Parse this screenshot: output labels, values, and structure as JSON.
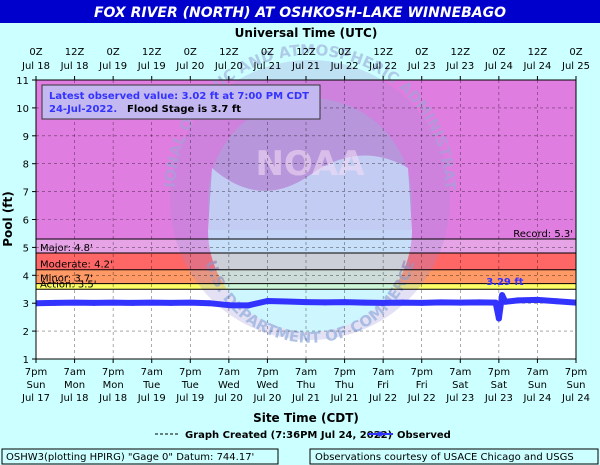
{
  "colors": {
    "title_bg": "#0000cc",
    "title_fg": "#ffffff",
    "page_bg": "#ccffff",
    "plot_bg": "#ffffff",
    "zone_record": "#e07de0",
    "zone_major": "#e6a3e6",
    "zone_moderate": "#ff6666",
    "zone_minor": "#ff9966",
    "zone_action": "#ffff66",
    "series": "#3333ff",
    "info_text": "#3333ff",
    "grid": "#000000",
    "watermark_blue": "#8fb6d8",
    "watermark_cyan": "#bdf3ff"
  },
  "icons": {
    "logo": "noaa-watermark-logo"
  },
  "header": {
    "title": "FOX RIVER (NORTH) AT OSHKOSH-LAKE WINNEBAGO"
  },
  "info_box": {
    "line1": "Latest observed value: 3.02 ft at 7:00 PM CDT",
    "line2a": "24-Jul-2022.",
    "line2b": "Flood Stage is 3.7 ft"
  },
  "watermark": {
    "word": "NOAA",
    "ring_top": "NATIONAL OCEANIC AND ATMOSPHERIC ADMINISTRATION",
    "ring_bottom": "U.S. DEPARTMENT OF COMMERCE"
  },
  "footer": {
    "legend_created": "Graph Created (7:36PM Jul 24, 2022)",
    "legend_observed": "Observed",
    "left_box": "OSHW3(plotting HPIRG) \"Gage 0\" Datum: 744.17'",
    "right_box": "Observations courtesy of USACE Chicago and USGS"
  },
  "chart_data": {
    "type": "line",
    "title": "FOX RIVER (NORTH) AT OSHKOSH-LAKE WINNEBAGO",
    "xlabel": "Site Time (CDT)",
    "ylabel": "Pool (ft)",
    "top_axis_label": "Universal Time (UTC)",
    "ylim": [
      1,
      11
    ],
    "y_ticks": [
      1,
      2,
      3,
      4,
      5,
      6,
      7,
      8,
      9,
      10,
      11
    ],
    "x_range": [
      "2022-07-17T19:00",
      "2022-07-24T19:00"
    ],
    "top_ticks": [
      {
        "l1": "0Z",
        "l2": "Jul 18"
      },
      {
        "l1": "12Z",
        "l2": "Jul 18"
      },
      {
        "l1": "0Z",
        "l2": "Jul 19"
      },
      {
        "l1": "12Z",
        "l2": "Jul 19"
      },
      {
        "l1": "0Z",
        "l2": "Jul 20"
      },
      {
        "l1": "12Z",
        "l2": "Jul 20"
      },
      {
        "l1": "0Z",
        "l2": "Jul 21"
      },
      {
        "l1": "12Z",
        "l2": "Jul 21"
      },
      {
        "l1": "0Z",
        "l2": "Jul 22"
      },
      {
        "l1": "12Z",
        "l2": "Jul 22"
      },
      {
        "l1": "0Z",
        "l2": "Jul 23"
      },
      {
        "l1": "12Z",
        "l2": "Jul 23"
      },
      {
        "l1": "0Z",
        "l2": "Jul 24"
      },
      {
        "l1": "12Z",
        "l2": "Jul 24"
      },
      {
        "l1": "0Z",
        "l2": "Jul 25"
      }
    ],
    "bottom_ticks": [
      {
        "t": "7pm",
        "d": "Sun",
        "date": "Jul 17"
      },
      {
        "t": "7am",
        "d": "Mon",
        "date": "Jul 18"
      },
      {
        "t": "7pm",
        "d": "Mon",
        "date": "Jul 18"
      },
      {
        "t": "7am",
        "d": "Tue",
        "date": "Jul 19"
      },
      {
        "t": "7pm",
        "d": "Tue",
        "date": "Jul 19"
      },
      {
        "t": "7am",
        "d": "Wed",
        "date": "Jul 20"
      },
      {
        "t": "7pm",
        "d": "Wed",
        "date": "Jul 20"
      },
      {
        "t": "7am",
        "d": "Thu",
        "date": "Jul 21"
      },
      {
        "t": "7pm",
        "d": "Thu",
        "date": "Jul 21"
      },
      {
        "t": "7am",
        "d": "Fri",
        "date": "Jul 22"
      },
      {
        "t": "7pm",
        "d": "Fri",
        "date": "Jul 22"
      },
      {
        "t": "7am",
        "d": "Sat",
        "date": "Jul 23"
      },
      {
        "t": "7pm",
        "d": "Sat",
        "date": "Jul 23"
      },
      {
        "t": "7am",
        "d": "Sun",
        "date": "Jul 24"
      },
      {
        "t": "7pm",
        "d": "Sun",
        "date": "Jul 24"
      }
    ],
    "flood_categories": [
      {
        "name": "Record",
        "label": "Record: 5.3'",
        "value": 5.3
      },
      {
        "name": "Major",
        "label": "Major: 4.8'",
        "value": 4.8
      },
      {
        "name": "Moderate",
        "label": "Moderate: 4.2'",
        "value": 4.2
      },
      {
        "name": "Minor",
        "label": "Minor: 3.7'",
        "value": 3.7
      },
      {
        "name": "Action",
        "label": "Action: 3.5'",
        "value": 3.5
      }
    ],
    "callout": {
      "x": "2022-07-23T19:00",
      "y": 3.29,
      "label": "3.29 ft"
    },
    "series": [
      {
        "name": "Observed",
        "points": [
          [
            "2022-07-17T19:00",
            3.0
          ],
          [
            "2022-07-18T01:00",
            3.01
          ],
          [
            "2022-07-18T07:00",
            3.02
          ],
          [
            "2022-07-18T13:00",
            3.01
          ],
          [
            "2022-07-18T19:00",
            3.02
          ],
          [
            "2022-07-19T01:00",
            3.01
          ],
          [
            "2022-07-19T07:00",
            3.02
          ],
          [
            "2022-07-19T13:00",
            3.01
          ],
          [
            "2022-07-19T19:00",
            3.02
          ],
          [
            "2022-07-20T01:00",
            3.0
          ],
          [
            "2022-07-20T07:00",
            2.93
          ],
          [
            "2022-07-20T13:00",
            2.92
          ],
          [
            "2022-07-20T19:00",
            3.08
          ],
          [
            "2022-07-21T01:00",
            3.06
          ],
          [
            "2022-07-21T07:00",
            3.04
          ],
          [
            "2022-07-21T13:00",
            3.03
          ],
          [
            "2022-07-21T19:00",
            3.04
          ],
          [
            "2022-07-22T01:00",
            3.02
          ],
          [
            "2022-07-22T07:00",
            3.01
          ],
          [
            "2022-07-22T13:00",
            3.02
          ],
          [
            "2022-07-22T19:00",
            3.01
          ],
          [
            "2022-07-23T01:00",
            3.03
          ],
          [
            "2022-07-23T07:00",
            3.02
          ],
          [
            "2022-07-23T13:00",
            3.03
          ],
          [
            "2022-07-23T18:00",
            3.02
          ],
          [
            "2022-07-23T19:00",
            2.45
          ],
          [
            "2022-07-23T20:00",
            3.29
          ],
          [
            "2022-07-23T21:00",
            3.05
          ],
          [
            "2022-07-24T01:00",
            3.1
          ],
          [
            "2022-07-24T07:00",
            3.12
          ],
          [
            "2022-07-24T13:00",
            3.07
          ],
          [
            "2022-07-24T19:00",
            3.02
          ]
        ]
      }
    ]
  }
}
